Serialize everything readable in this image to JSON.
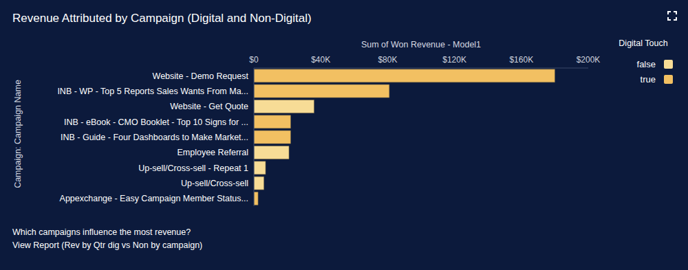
{
  "chart_data": {
    "type": "bar",
    "title": "Revenue Attributed by Campaign (Digital and Non-Digital)",
    "x_label": "Sum of Won Revenue - Model1",
    "y_label": "Campaign: Campaign Name",
    "legend_title": "Digital Touch",
    "annotations": [
      "Which campaigns influence the most revenue?",
      "View Report (Rev by Qtr dig vs Non by campaign)"
    ],
    "orientation": "horizontal",
    "stacked": true,
    "grid": false,
    "legend": "top-right",
    "categories": [
      "Website - Demo Request",
      "INB - WP - Top 5 Reports Sales Wants From Ma...",
      "Website - Get Quote",
      "INB - eBook - CMO Booklet - Top 10 Signs for ...",
      "INB - Guide - Four Dashboards to Make Market...",
      "Employee Referral",
      "Up-sell/Cross-sell - Repeat 1",
      "Up-sell/Cross-sell",
      "Appexchange - Easy Campaign Member Status..."
    ],
    "series": [
      {
        "name": "false",
        "color": "#f7dc96",
        "values": [
          null,
          null,
          36000,
          null,
          null,
          21000,
          7000,
          6000,
          null
        ]
      },
      {
        "name": "true",
        "color": "#f2c062",
        "values": [
          180000,
          81000,
          null,
          22000,
          22000,
          null,
          null,
          null,
          2500
        ]
      }
    ],
    "xlim": [
      0,
      200000
    ],
    "xticks": [
      {
        "value": 0,
        "label": "$0"
      },
      {
        "value": 40000,
        "label": "$40K"
      },
      {
        "value": 80000,
        "label": "$80K"
      },
      {
        "value": 120000,
        "label": "$120K"
      },
      {
        "value": 160000,
        "label": "$160K"
      },
      {
        "value": 200000,
        "label": "$200K"
      }
    ]
  }
}
